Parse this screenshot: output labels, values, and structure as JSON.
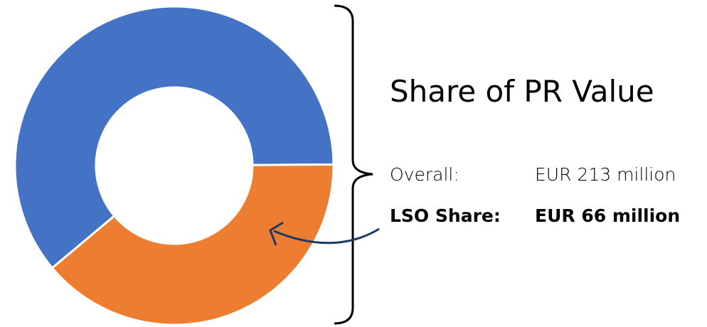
{
  "chart_data": {
    "type": "pie",
    "title": "Share of PR Value",
    "categories": [
      null,
      null
    ],
    "values": [
      61,
      39
    ],
    "colors": [
      "#4472c4",
      "#ed7d31"
    ],
    "donut": true
  },
  "summary": {
    "rows": [
      [
        "Overall:",
        "EUR 213 million"
      ],
      [
        "LSO Share:",
        "EUR 66 million"
      ]
    ]
  }
}
